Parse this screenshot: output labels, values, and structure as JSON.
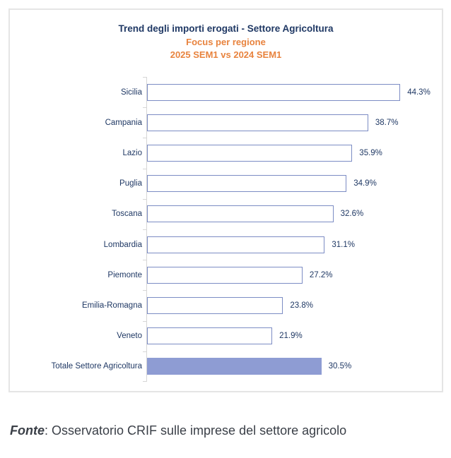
{
  "chart": {
    "title": "Trend degli importi erogati - Settore Agricoltura",
    "subtitle": "Focus per regione",
    "period": "2025 SEM1 vs 2024 SEM1",
    "colors": {
      "navy": "#1F3864",
      "orange": "#E8833E",
      "bar_border": "#7C8CC4",
      "bar_fill_total": "#8E9CD3",
      "axis": "#D6D6D6",
      "card_border": "#E5E5E5"
    }
  },
  "chart_data": {
    "type": "bar",
    "orientation": "horizontal",
    "title": "Trend degli importi erogati - Settore Agricoltura",
    "subtitle": "Focus per regione",
    "period_compared": "2025 SEM1 vs 2024 SEM1",
    "xlabel": "",
    "ylabel": "",
    "xlim": [
      0,
      47
    ],
    "grid": false,
    "legend": false,
    "value_suffix": "%",
    "categories": [
      "Sicilia",
      "Campania",
      "Lazio",
      "Puglia",
      "Toscana",
      "Lombardia",
      "Piemonte",
      "Emilia-Romagna",
      "Veneto",
      "Totale Settore Agricoltura"
    ],
    "values": [
      44.3,
      38.7,
      35.9,
      34.9,
      32.6,
      31.1,
      27.2,
      23.8,
      21.9,
      30.5
    ],
    "data_labels": [
      "44.3%",
      "38.7%",
      "35.9%",
      "34.9%",
      "32.6%",
      "31.1%",
      "27.2%",
      "23.8%",
      "21.9%",
      "30.5%"
    ],
    "highlight_category": "Totale Settore Agricoltura",
    "bar_style": "outlined-white, highlighted total bar solid fill"
  },
  "source": {
    "label": "Fonte",
    "text": ": Osservatorio CRIF sulle imprese del settore agricolo"
  }
}
